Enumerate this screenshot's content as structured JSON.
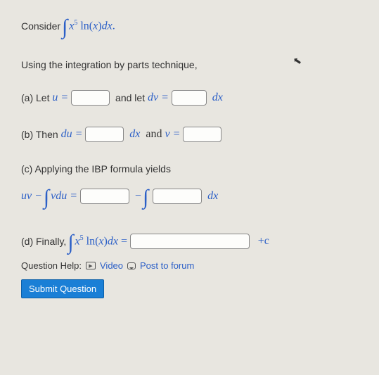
{
  "consider_label": "Consider",
  "integral_expr": "x⁵ ln(x) dx.",
  "prompt": "Using the integration by parts technique,",
  "parts": {
    "a": {
      "label": "(a) Let",
      "u_eq": "u =",
      "and_let": "and let",
      "dv_eq": "dv =",
      "dx": "dx"
    },
    "b": {
      "label": "(b) Then",
      "du_eq": "du =",
      "dx_and": "dx   and",
      "v_eq": "v ="
    },
    "c": {
      "label": "(c) Applying the IBP formula yields",
      "lhs": "uv −",
      "vdu": "vdu =",
      "minus": "−",
      "dx": "dx"
    },
    "d": {
      "label": "(d) Finally,",
      "expr": "x⁵ ln(x) dx =",
      "plus_c": "+c"
    }
  },
  "help": {
    "label": "Question Help:",
    "video": "Video",
    "forum": "Post to forum"
  },
  "submit": "Submit Question",
  "colors": {
    "accent": "#2b5fc7",
    "button": "#1a7fd6"
  }
}
